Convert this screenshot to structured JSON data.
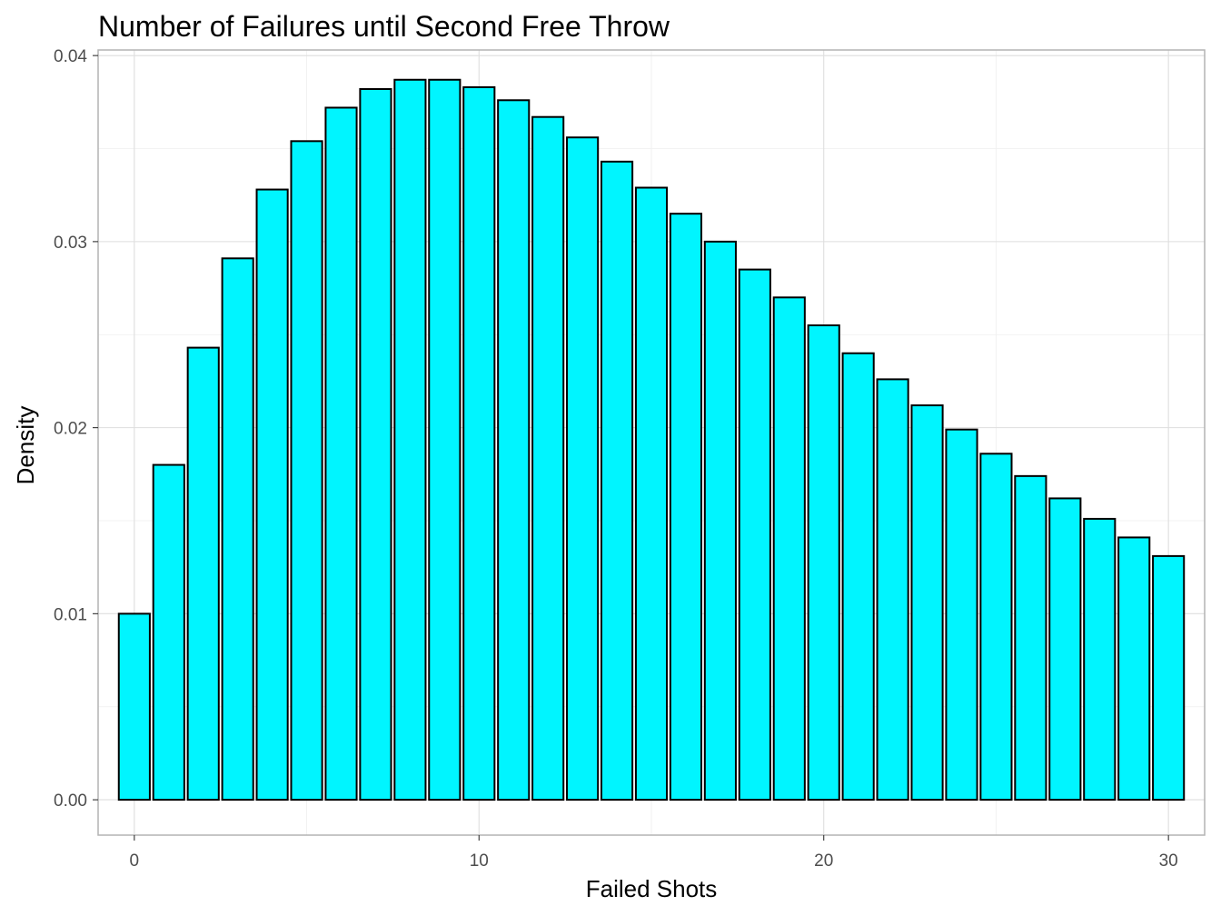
{
  "chart_data": {
    "type": "bar",
    "title": "Number of Failures until Second Free Throw",
    "xlabel": "Failed Shots",
    "ylabel": "Density",
    "x": [
      0,
      1,
      2,
      3,
      4,
      5,
      6,
      7,
      8,
      9,
      10,
      11,
      12,
      13,
      14,
      15,
      16,
      17,
      18,
      19,
      20,
      21,
      22,
      23,
      24,
      25,
      26,
      27,
      28,
      29,
      30
    ],
    "values": [
      0.01,
      0.018,
      0.0243,
      0.0291,
      0.0328,
      0.0354,
      0.0372,
      0.0382,
      0.0387,
      0.0387,
      0.0383,
      0.0376,
      0.0367,
      0.0356,
      0.0343,
      0.0329,
      0.0315,
      0.03,
      0.0285,
      0.027,
      0.0255,
      0.024,
      0.0226,
      0.0212,
      0.0199,
      0.0186,
      0.0174,
      0.0162,
      0.0151,
      0.0141,
      0.0131
    ],
    "xlim": [
      -1.05,
      31.05
    ],
    "ylim": [
      -0.0019,
      0.0403
    ],
    "xticks": [
      0,
      10,
      20,
      30
    ],
    "xtick_labels": [
      "0",
      "10",
      "20",
      "30"
    ],
    "yticks": [
      0.0,
      0.01,
      0.02,
      0.03,
      0.04
    ],
    "ytick_labels": [
      "0.00",
      "0.01",
      "0.02",
      "0.03",
      "0.04"
    ],
    "bar_color": "#00f5ff",
    "bar_outline": "#000000",
    "grid": true,
    "legend": "none"
  }
}
